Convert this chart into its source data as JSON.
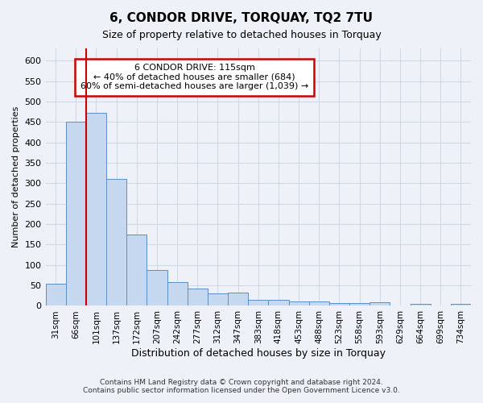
{
  "title": "6, CONDOR DRIVE, TORQUAY, TQ2 7TU",
  "subtitle": "Size of property relative to detached houses in Torquay",
  "xlabel": "Distribution of detached houses by size in Torquay",
  "ylabel": "Number of detached properties",
  "categories": [
    "31sqm",
    "66sqm",
    "101sqm",
    "137sqm",
    "172sqm",
    "207sqm",
    "242sqm",
    "277sqm",
    "312sqm",
    "347sqm",
    "383sqm",
    "418sqm",
    "453sqm",
    "488sqm",
    "523sqm",
    "558sqm",
    "593sqm",
    "629sqm",
    "664sqm",
    "699sqm",
    "734sqm"
  ],
  "values": [
    55,
    450,
    472,
    310,
    175,
    88,
    58,
    42,
    30,
    32,
    15,
    15,
    10,
    10,
    6,
    6,
    8,
    0,
    5,
    0,
    5
  ],
  "bar_color": "#c5d8f0",
  "bar_edge_color": "#5b8fc7",
  "red_line_color": "#cc0000",
  "annotation_title": "6 CONDOR DRIVE: 115sqm",
  "annotation_line1": "← 40% of detached houses are smaller (684)",
  "annotation_line2": "60% of semi-detached houses are larger (1,039) →",
  "annotation_box_color": "#ffffff",
  "annotation_box_edge": "#cc0000",
  "ylim": [
    0,
    630
  ],
  "yticks": [
    0,
    50,
    100,
    150,
    200,
    250,
    300,
    350,
    400,
    450,
    500,
    550,
    600
  ],
  "footer_line1": "Contains HM Land Registry data © Crown copyright and database right 2024.",
  "footer_line2": "Contains public sector information licensed under the Open Government Licence v3.0.",
  "background_color": "#eef2f8",
  "grid_color": "#d0d8e8"
}
